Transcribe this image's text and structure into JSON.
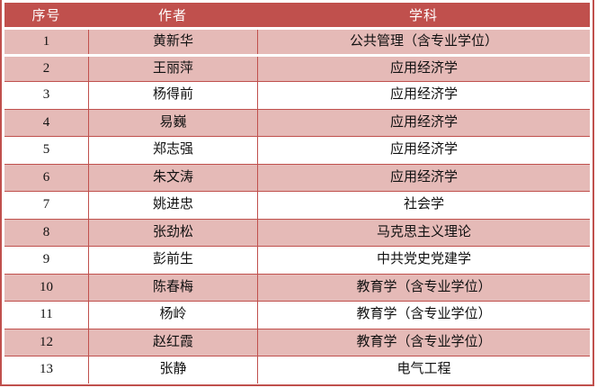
{
  "table": {
    "headers": [
      "序号",
      "作者",
      "学科"
    ],
    "rows": [
      {
        "no": "1",
        "author": "黄新华",
        "subject": "公共管理（含专业学位）"
      },
      {
        "no": "2",
        "author": "王丽萍",
        "subject": "应用经济学"
      },
      {
        "no": "3",
        "author": "杨得前",
        "subject": "应用经济学"
      },
      {
        "no": "4",
        "author": "易巍",
        "subject": "应用经济学"
      },
      {
        "no": "5",
        "author": "郑志强",
        "subject": "应用经济学"
      },
      {
        "no": "6",
        "author": "朱文涛",
        "subject": "应用经济学"
      },
      {
        "no": "7",
        "author": "姚进忠",
        "subject": "社会学"
      },
      {
        "no": "8",
        "author": "张劲松",
        "subject": "马克思主义理论"
      },
      {
        "no": "9",
        "author": "彭前生",
        "subject": "中共党史党建学"
      },
      {
        "no": "10",
        "author": "陈春梅",
        "subject": "教育学（含专业学位）"
      },
      {
        "no": "11",
        "author": "杨岭",
        "subject": "教育学（含专业学位）"
      },
      {
        "no": "12",
        "author": "赵红霞",
        "subject": "教育学（含专业学位）"
      },
      {
        "no": "13",
        "author": "张静",
        "subject": "电气工程"
      }
    ]
  },
  "colors": {
    "header_bg": "#C0504D",
    "header_text": "#FFFFFF",
    "banded_row_bg": "#E5BAB7",
    "grid_line": "#C0504D",
    "body_text": "#111111"
  }
}
